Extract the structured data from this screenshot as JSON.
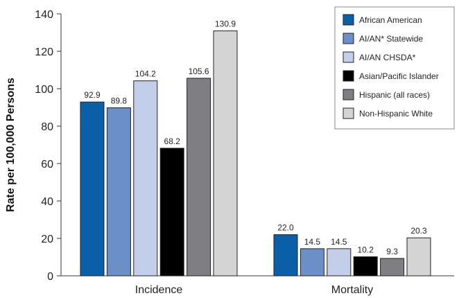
{
  "chart_data": {
    "type": "bar",
    "title": "",
    "xlabel": "",
    "ylabel": "Rate per 100,000 Persons",
    "ylim": [
      0,
      140
    ],
    "yticks": [
      0,
      20,
      40,
      60,
      80,
      100,
      120,
      140
    ],
    "grid": false,
    "legend_position": "top-right",
    "categories": [
      "Incidence",
      "Mortality"
    ],
    "series": [
      {
        "name": "African American",
        "color": "#0b5ea8",
        "values": [
          92.9,
          22.0
        ],
        "labels": [
          "92.9",
          "22.0"
        ]
      },
      {
        "name": "AI/AN* Statewide",
        "color": "#6b8fc7",
        "values": [
          89.8,
          14.5
        ],
        "labels": [
          "89.8",
          "14.5"
        ]
      },
      {
        "name": "AI/AN CHSDA*",
        "color": "#c3cfe8",
        "values": [
          104.2,
          14.5
        ],
        "labels": [
          "104.2",
          "14.5"
        ]
      },
      {
        "name": "Asian/Pacific Islander",
        "color": "#000000",
        "values": [
          68.2,
          10.2
        ],
        "labels": [
          "68.2",
          "10.2"
        ]
      },
      {
        "name": "Hispanic (all races)",
        "color": "#7f7f83",
        "values": [
          105.6,
          9.3
        ],
        "labels": [
          "105.6",
          "9.3"
        ]
      },
      {
        "name": "Non-Hispanic White",
        "color": "#d4d4d4",
        "values": [
          130.9,
          20.3
        ],
        "labels": [
          "130.9",
          "20.3"
        ]
      }
    ]
  }
}
